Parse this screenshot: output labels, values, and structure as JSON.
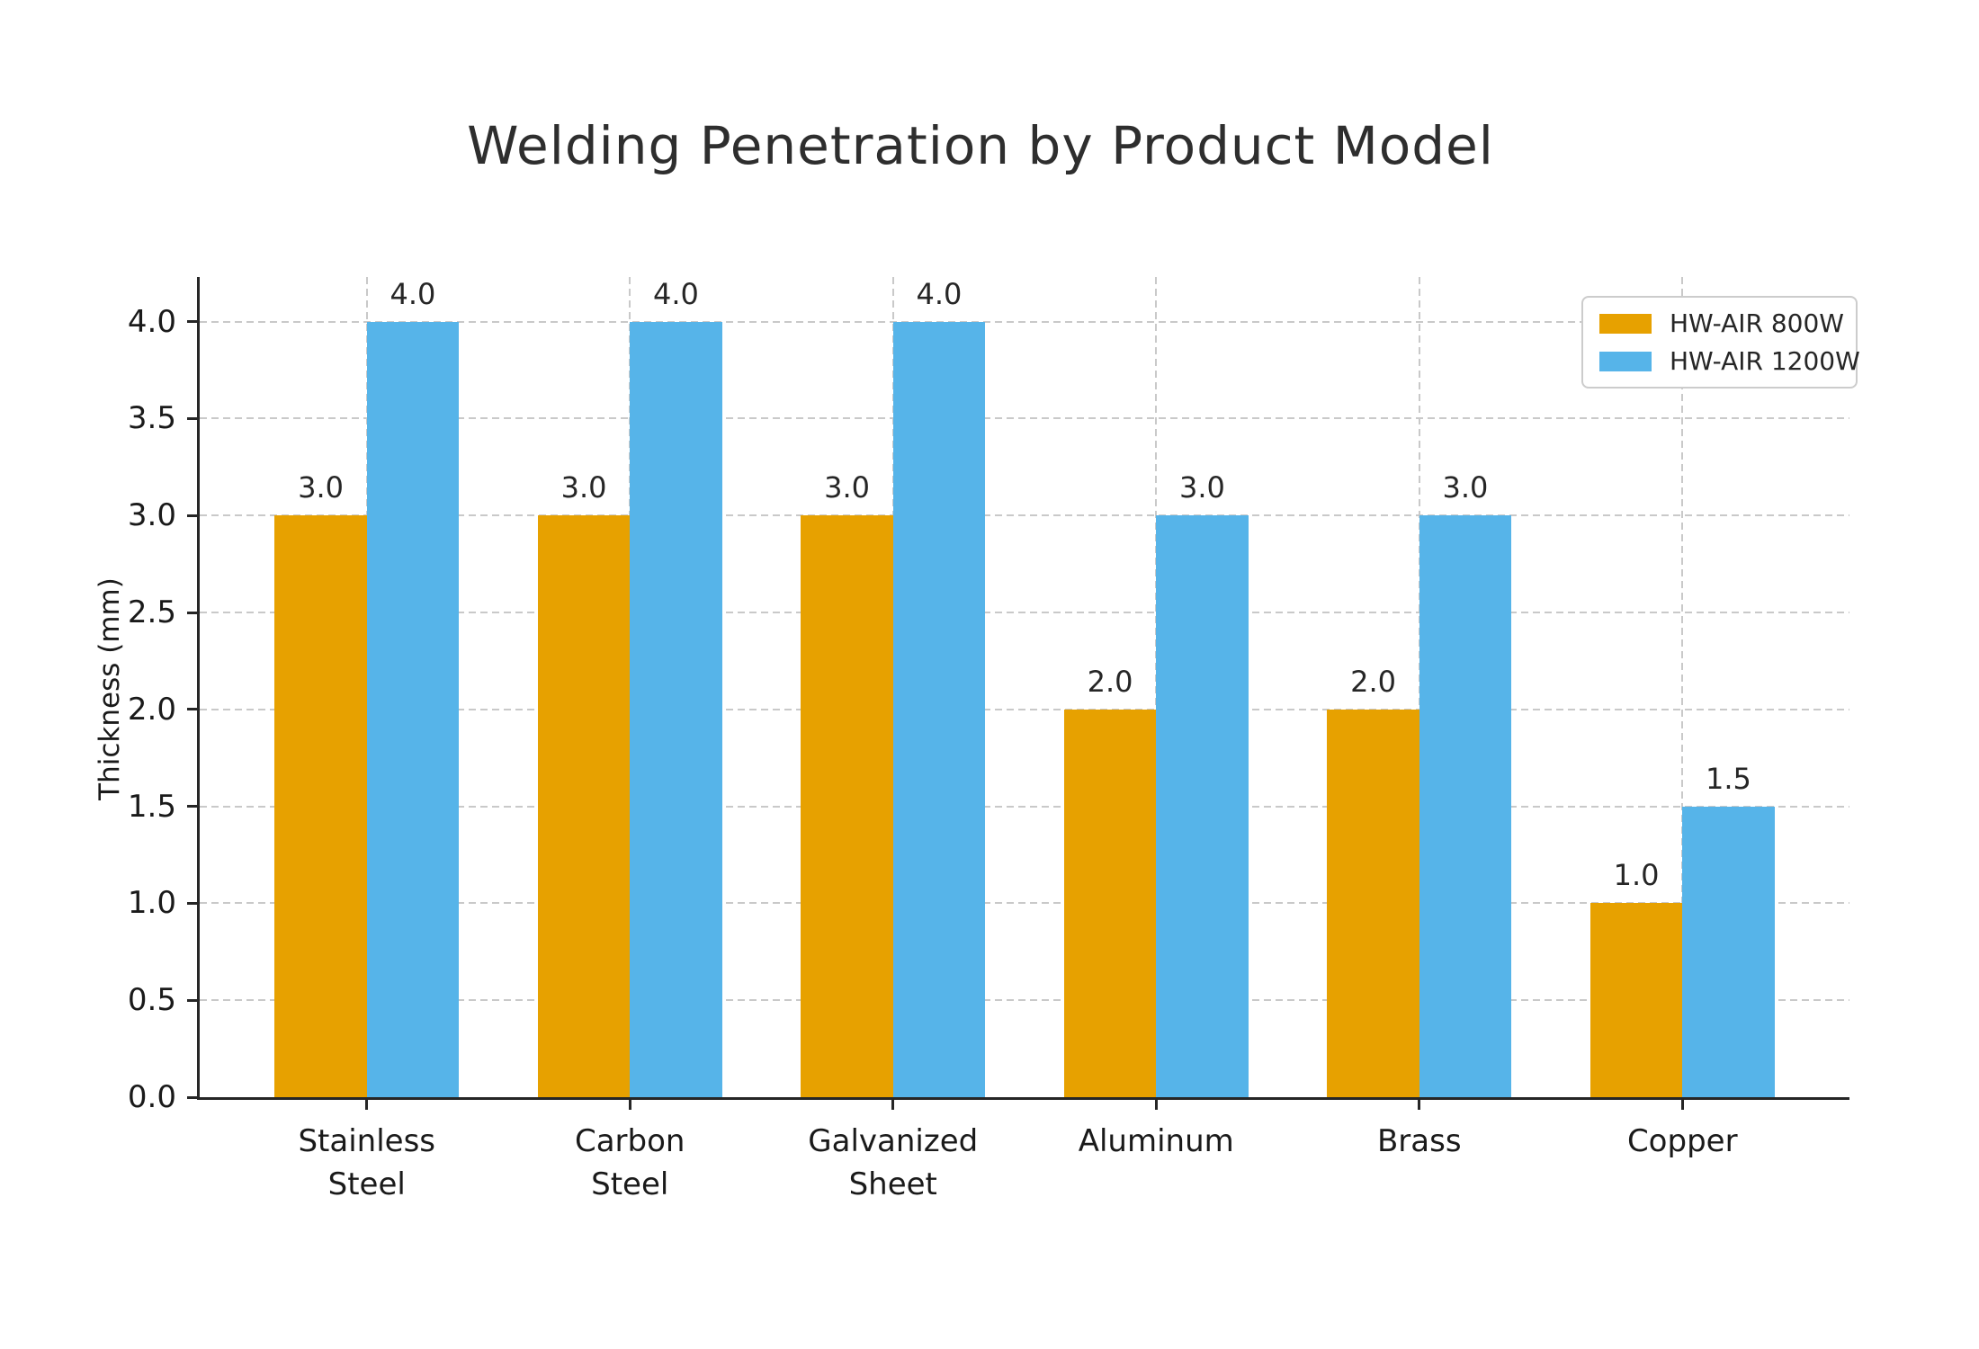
{
  "chart_data": {
    "type": "bar",
    "title": "Welding Penetration by Product Model",
    "ylabel": "Thickness (mm)",
    "xlabel": "",
    "categories": [
      "Stainless\nSteel",
      "Carbon\nSteel",
      "Galvanized\nSheet",
      "Aluminum",
      "Brass",
      "Copper"
    ],
    "series": [
      {
        "name": "HW-AIR 800W",
        "color": "#E7A100",
        "values": [
          3.0,
          3.0,
          3.0,
          2.0,
          2.0,
          1.0
        ]
      },
      {
        "name": "HW-AIR 1200W",
        "color": "#56B4E9",
        "values": [
          4.0,
          4.0,
          4.0,
          3.0,
          3.0,
          1.5
        ]
      }
    ],
    "yticks": [
      0.0,
      0.5,
      1.0,
      1.5,
      2.0,
      2.5,
      3.0,
      3.5,
      4.0
    ],
    "ylim": [
      0,
      4.23
    ],
    "value_label_decimals": 1,
    "grid": "both-dashed",
    "legend_position": "upper-right",
    "colors": {
      "grid": "#c9c9c9",
      "spine": "#262626",
      "tick_text": "#1a1a1a",
      "title_text": "#2e2e2e"
    }
  }
}
